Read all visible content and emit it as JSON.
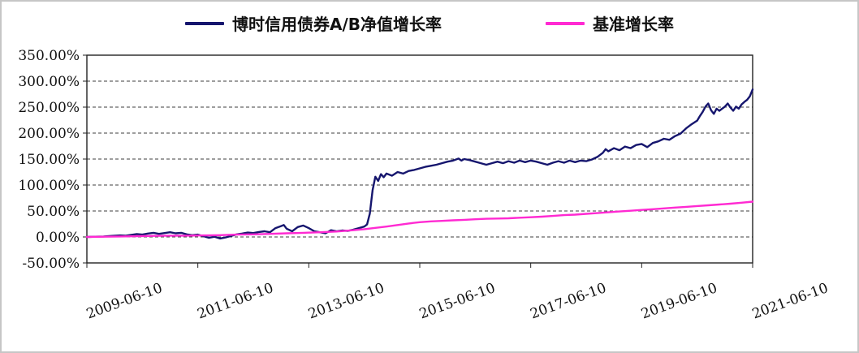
{
  "figure": {
    "background": "#ffffff",
    "border_color": "#c6c6c6"
  },
  "chart_data": {
    "type": "line",
    "title": "",
    "xlabel": "",
    "ylabel": "",
    "grid": "horizontal-dashed",
    "legend_position": "top",
    "xlim": [
      0,
      12
    ],
    "ylim": [
      -50,
      350
    ],
    "yticks": [
      350,
      300,
      250,
      200,
      150,
      100,
      50,
      0,
      -50
    ],
    "ytick_labels": [
      "350.00%",
      "300.00%",
      "250.00%",
      "200.00%",
      "150.00%",
      "100.00%",
      "50.00%",
      "0.00%",
      "-50.00%"
    ],
    "xticks": [
      0,
      2,
      4,
      6,
      8,
      10,
      12
    ],
    "xtick_labels": [
      "2009-06-10",
      "2011-06-10",
      "2013-06-10",
      "2015-06-10",
      "2017-06-10",
      "2019-06-10",
      "2021-06-10"
    ],
    "series": [
      {
        "name": "博时信用债券A/B净值增长率",
        "color": "#16166e",
        "width": 2.4,
        "points": [
          [
            0,
            0
          ],
          [
            0.15,
            0.5
          ],
          [
            0.3,
            1
          ],
          [
            0.45,
            2
          ],
          [
            0.6,
            3
          ],
          [
            0.7,
            2.5
          ],
          [
            0.8,
            4
          ],
          [
            0.9,
            5.5
          ],
          [
            1.0,
            4.5
          ],
          [
            1.1,
            6.5
          ],
          [
            1.2,
            8
          ],
          [
            1.3,
            6
          ],
          [
            1.4,
            7.5
          ],
          [
            1.5,
            9
          ],
          [
            1.6,
            7
          ],
          [
            1.7,
            8
          ],
          [
            1.8,
            5
          ],
          [
            1.9,
            3.5
          ],
          [
            2.0,
            4.5
          ],
          [
            2.1,
            1.5
          ],
          [
            2.2,
            -1.5
          ],
          [
            2.3,
            0.5
          ],
          [
            2.4,
            -3
          ],
          [
            2.5,
            -1
          ],
          [
            2.6,
            2
          ],
          [
            2.7,
            5
          ],
          [
            2.8,
            6.5
          ],
          [
            2.9,
            8.5
          ],
          [
            3.0,
            7.5
          ],
          [
            3.1,
            9.5
          ],
          [
            3.2,
            11
          ],
          [
            3.3,
            9
          ],
          [
            3.4,
            17
          ],
          [
            3.5,
            21
          ],
          [
            3.55,
            23
          ],
          [
            3.6,
            16
          ],
          [
            3.7,
            11
          ],
          [
            3.8,
            19
          ],
          [
            3.9,
            22
          ],
          [
            4.0,
            17
          ],
          [
            4.1,
            11
          ],
          [
            4.2,
            9
          ],
          [
            4.3,
            7
          ],
          [
            4.4,
            13
          ],
          [
            4.5,
            11
          ],
          [
            4.6,
            12.5
          ],
          [
            4.7,
            11.5
          ],
          [
            4.8,
            14
          ],
          [
            4.9,
            17
          ],
          [
            5.0,
            20
          ],
          [
            5.05,
            24
          ],
          [
            5.1,
            45
          ],
          [
            5.15,
            90
          ],
          [
            5.2,
            116
          ],
          [
            5.25,
            108
          ],
          [
            5.3,
            121
          ],
          [
            5.35,
            115
          ],
          [
            5.4,
            122
          ],
          [
            5.5,
            118
          ],
          [
            5.6,
            125
          ],
          [
            5.7,
            122
          ],
          [
            5.8,
            127
          ],
          [
            5.9,
            129
          ],
          [
            6.0,
            132
          ],
          [
            6.1,
            135
          ],
          [
            6.2,
            137
          ],
          [
            6.3,
            139
          ],
          [
            6.4,
            142
          ],
          [
            6.5,
            145
          ],
          [
            6.6,
            147
          ],
          [
            6.7,
            151
          ],
          [
            6.75,
            147
          ],
          [
            6.8,
            150
          ],
          [
            6.9,
            148
          ],
          [
            7.0,
            145
          ],
          [
            7.1,
            142
          ],
          [
            7.2,
            139
          ],
          [
            7.3,
            142
          ],
          [
            7.4,
            145
          ],
          [
            7.5,
            142
          ],
          [
            7.6,
            146
          ],
          [
            7.7,
            143
          ],
          [
            7.8,
            147
          ],
          [
            7.9,
            144
          ],
          [
            8.0,
            147
          ],
          [
            8.1,
            145
          ],
          [
            8.2,
            142
          ],
          [
            8.3,
            139
          ],
          [
            8.4,
            143
          ],
          [
            8.5,
            146
          ],
          [
            8.6,
            143
          ],
          [
            8.7,
            147
          ],
          [
            8.8,
            144
          ],
          [
            8.9,
            147
          ],
          [
            9.0,
            146
          ],
          [
            9.1,
            149
          ],
          [
            9.2,
            154
          ],
          [
            9.3,
            162
          ],
          [
            9.35,
            169
          ],
          [
            9.4,
            165
          ],
          [
            9.5,
            171
          ],
          [
            9.6,
            167
          ],
          [
            9.7,
            174
          ],
          [
            9.8,
            171
          ],
          [
            9.9,
            177
          ],
          [
            10.0,
            179
          ],
          [
            10.1,
            173
          ],
          [
            10.2,
            181
          ],
          [
            10.3,
            184
          ],
          [
            10.4,
            189
          ],
          [
            10.5,
            187
          ],
          [
            10.6,
            194
          ],
          [
            10.7,
            199
          ],
          [
            10.8,
            209
          ],
          [
            10.9,
            217
          ],
          [
            11.0,
            224
          ],
          [
            11.05,
            233
          ],
          [
            11.1,
            241
          ],
          [
            11.15,
            251
          ],
          [
            11.2,
            257
          ],
          [
            11.25,
            244
          ],
          [
            11.3,
            237
          ],
          [
            11.35,
            247
          ],
          [
            11.4,
            243
          ],
          [
            11.5,
            251
          ],
          [
            11.55,
            257
          ],
          [
            11.6,
            249
          ],
          [
            11.65,
            243
          ],
          [
            11.7,
            251
          ],
          [
            11.75,
            247
          ],
          [
            11.8,
            255
          ],
          [
            11.85,
            260
          ],
          [
            11.9,
            264
          ],
          [
            11.95,
            271
          ],
          [
            12,
            284
          ]
        ]
      },
      {
        "name": "基准增长率",
        "color": "#ff2ad2",
        "width": 2.4,
        "points": [
          [
            0,
            0
          ],
          [
            0.3,
            0.5
          ],
          [
            0.6,
            1
          ],
          [
            0.9,
            1.5
          ],
          [
            1.2,
            2
          ],
          [
            1.5,
            2.5
          ],
          [
            1.8,
            2.5
          ],
          [
            2.1,
            3
          ],
          [
            2.4,
            3.5
          ],
          [
            2.7,
            4.5
          ],
          [
            3.0,
            5
          ],
          [
            3.3,
            6
          ],
          [
            3.6,
            7
          ],
          [
            3.9,
            8
          ],
          [
            4.2,
            9
          ],
          [
            4.5,
            10.5
          ],
          [
            4.8,
            13
          ],
          [
            5.0,
            15
          ],
          [
            5.2,
            17.5
          ],
          [
            5.4,
            20
          ],
          [
            5.6,
            23
          ],
          [
            5.8,
            26
          ],
          [
            6.0,
            28.5
          ],
          [
            6.2,
            30
          ],
          [
            6.4,
            31
          ],
          [
            6.6,
            32
          ],
          [
            6.8,
            33
          ],
          [
            7.0,
            34
          ],
          [
            7.2,
            35
          ],
          [
            7.4,
            35.5
          ],
          [
            7.6,
            36
          ],
          [
            7.8,
            37
          ],
          [
            8.0,
            38
          ],
          [
            8.2,
            39
          ],
          [
            8.4,
            40.5
          ],
          [
            8.6,
            42
          ],
          [
            8.8,
            43
          ],
          [
            9.0,
            44.5
          ],
          [
            9.2,
            46
          ],
          [
            9.4,
            47.5
          ],
          [
            9.6,
            49
          ],
          [
            9.8,
            50.5
          ],
          [
            10.0,
            52
          ],
          [
            10.2,
            53.5
          ],
          [
            10.4,
            55
          ],
          [
            10.6,
            56.5
          ],
          [
            10.8,
            58
          ],
          [
            11.0,
            59.5
          ],
          [
            11.2,
            61
          ],
          [
            11.4,
            62.5
          ],
          [
            11.6,
            64
          ],
          [
            11.8,
            66
          ],
          [
            12,
            68
          ]
        ]
      }
    ]
  }
}
